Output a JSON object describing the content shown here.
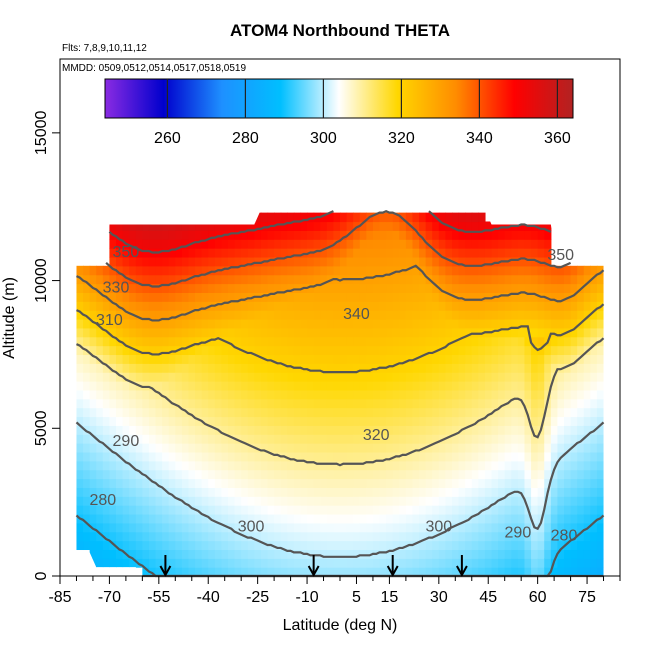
{
  "chart_data": {
    "type": "heatmap",
    "title": "ATOM4 Northbound THETA",
    "subtitle_lines": [
      "Flts: 7,8,9,10,11,12",
      "MMDD: 0509,0512,0514,0517,0518,0519"
    ],
    "xlabel": "Latitude (deg N)",
    "ylabel": "Altitude (m)",
    "xlim": [
      -85,
      85
    ],
    "ylim": [
      0,
      17500
    ],
    "x_ticks_major": [
      -85,
      -70,
      -55,
      -40,
      -25,
      -10,
      5,
      15,
      30,
      45,
      60,
      75
    ],
    "y_ticks": [
      0,
      5000,
      10000,
      15000
    ],
    "colorbar": {
      "range": [
        244,
        364
      ],
      "ticks": [
        260,
        280,
        300,
        320,
        340,
        360
      ],
      "colors": [
        "#8a2be2",
        "#0000cd",
        "#1e90ff",
        "#00bfff",
        "#ffffff",
        "#ffd700",
        "#ff8c00",
        "#ff0000",
        "#b22222"
      ]
    },
    "contours": [
      {
        "level": 280,
        "label": "280",
        "label_at": [
          -72,
          2400
        ]
      },
      {
        "level": 290,
        "label": "290",
        "label_at": [
          -65,
          4400
        ]
      },
      {
        "level": 290,
        "label": "290",
        "label_at": [
          54,
          1300
        ]
      },
      {
        "level": 300,
        "label": "300",
        "label_at": [
          -27,
          1500
        ]
      },
      {
        "level": 300,
        "label": "300",
        "label_at": [
          30,
          1500
        ]
      },
      {
        "level": 280,
        "label": "280",
        "label_at": [
          68,
          1200
        ]
      },
      {
        "level": 310,
        "label": "310",
        "label_at": [
          -70,
          8500
        ]
      },
      {
        "level": 320,
        "label": "320",
        "label_at": [
          11,
          4600
        ]
      },
      {
        "level": 330,
        "label": "330",
        "label_at": [
          -68,
          9600
        ]
      },
      {
        "level": 340,
        "label": "340",
        "label_at": [
          5,
          8700
        ]
      },
      {
        "level": 350,
        "label": "350",
        "label_at": [
          -65,
          10800
        ]
      },
      {
        "level": 350,
        "label": "350",
        "label_at": [
          67,
          10700
        ]
      }
    ],
    "flight_arrows_lat": [
      -53,
      -8,
      16,
      37
    ]
  }
}
